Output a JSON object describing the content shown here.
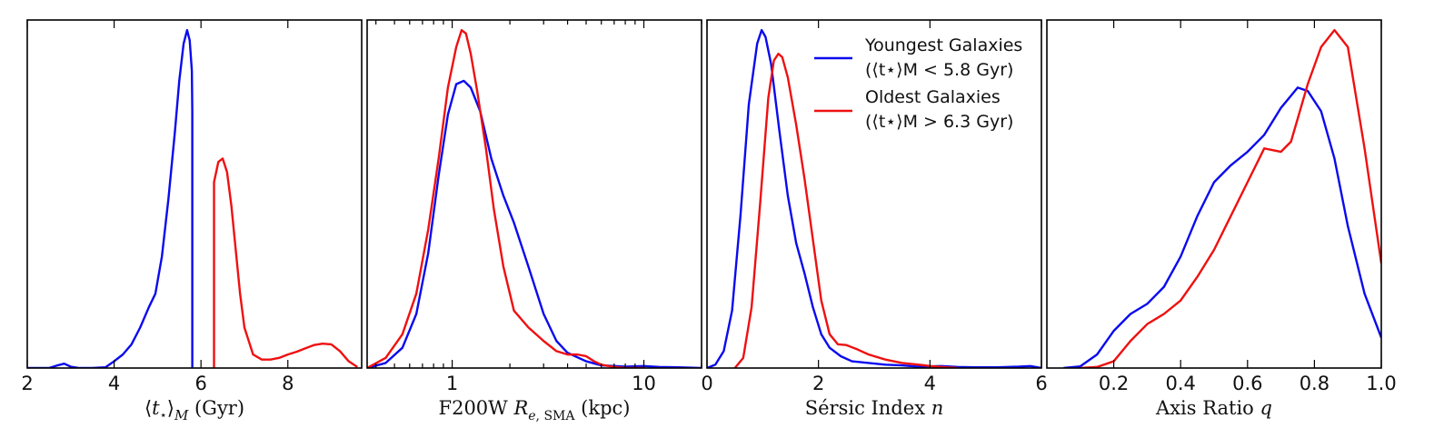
{
  "colors": {
    "youngest": "#0a0aef",
    "oldest": "#ef1010"
  },
  "legend": {
    "entries": [
      {
        "series": "youngest",
        "line1": "Youngest Galaxies",
        "line2": "(⟨t⋆⟩M < 5.8 Gyr)"
      },
      {
        "series": "oldest",
        "line1": "Oldest Galaxies",
        "line2": "(⟨t⋆⟩M > 6.3 Gyr)"
      }
    ],
    "placement": "top-right of panel 3"
  },
  "chart_data": [
    {
      "type": "line",
      "id": "age",
      "xlabel": "⟨t⋆⟩M (Gyr)",
      "xscale": "linear",
      "xlim": [
        2,
        9.7
      ],
      "xticks": [
        2,
        4,
        6,
        8
      ],
      "tick_labels": [
        "2",
        "4",
        "6",
        "8"
      ],
      "ylim": [
        0,
        1.03
      ],
      "series": [
        {
          "name": "youngest",
          "x": [
            2.0,
            2.5,
            2.7,
            2.85,
            3.0,
            3.2,
            3.5,
            3.8,
            4.0,
            4.2,
            4.4,
            4.6,
            4.8,
            4.95,
            5.1,
            5.25,
            5.4,
            5.5,
            5.6,
            5.68,
            5.74,
            5.79,
            5.8,
            5.8
          ],
          "y": [
            0.0,
            0.0,
            0.008,
            0.013,
            0.004,
            0.0,
            0.0,
            0.002,
            0.02,
            0.04,
            0.07,
            0.12,
            0.18,
            0.22,
            0.33,
            0.5,
            0.7,
            0.85,
            0.96,
            1.0,
            0.97,
            0.88,
            0.76,
            0.0
          ]
        },
        {
          "name": "oldest",
          "x": [
            6.3,
            6.3,
            6.4,
            6.5,
            6.6,
            6.7,
            6.8,
            6.9,
            7.0,
            7.2,
            7.4,
            7.6,
            7.8,
            8.0,
            8.2,
            8.4,
            8.6,
            8.8,
            9.0,
            9.2,
            9.4,
            9.6
          ],
          "y": [
            0.0,
            0.55,
            0.61,
            0.62,
            0.58,
            0.48,
            0.35,
            0.22,
            0.12,
            0.04,
            0.025,
            0.025,
            0.03,
            0.04,
            0.048,
            0.058,
            0.068,
            0.072,
            0.07,
            0.05,
            0.02,
            0.003
          ]
        }
      ]
    },
    {
      "type": "line",
      "id": "size",
      "xlabel": "F200W Re,SMA (kpc)",
      "xscale": "log",
      "xlim": [
        0.36,
        20
      ],
      "xticks": [
        1,
        10
      ],
      "tick_labels": [
        "1",
        "10"
      ],
      "minor_ticks": [
        0.4,
        0.5,
        0.6,
        0.7,
        0.8,
        0.9,
        2,
        3,
        4,
        5,
        6,
        7,
        8,
        9,
        20
      ],
      "ylim": [
        0,
        1.03
      ],
      "series": [
        {
          "name": "youngest",
          "x": [
            0.36,
            0.45,
            0.55,
            0.65,
            0.75,
            0.85,
            0.95,
            1.05,
            1.15,
            1.25,
            1.4,
            1.6,
            1.85,
            2.1,
            2.5,
            3.0,
            3.5,
            4.0,
            5.0,
            6.0,
            8.0,
            10.0,
            12.0,
            15.0,
            20.0
          ],
          "y": [
            0.0,
            0.015,
            0.06,
            0.16,
            0.34,
            0.57,
            0.75,
            0.84,
            0.85,
            0.83,
            0.76,
            0.62,
            0.51,
            0.43,
            0.3,
            0.16,
            0.08,
            0.045,
            0.02,
            0.008,
            0.004,
            0.006,
            0.003,
            0.002,
            0.0
          ]
        },
        {
          "name": "oldest",
          "x": [
            0.36,
            0.45,
            0.55,
            0.65,
            0.75,
            0.85,
            0.95,
            1.05,
            1.12,
            1.18,
            1.25,
            1.35,
            1.5,
            1.65,
            1.85,
            2.1,
            2.5,
            3.0,
            3.5,
            4.0,
            4.5,
            5.0,
            5.5,
            6.0,
            7.0,
            8.0,
            10.0
          ],
          "y": [
            0.0,
            0.03,
            0.1,
            0.22,
            0.41,
            0.62,
            0.83,
            0.95,
            1.0,
            0.99,
            0.93,
            0.82,
            0.65,
            0.47,
            0.3,
            0.17,
            0.12,
            0.08,
            0.05,
            0.04,
            0.04,
            0.035,
            0.02,
            0.01,
            0.003,
            0.0,
            0.0
          ]
        }
      ]
    },
    {
      "type": "line",
      "id": "sersic",
      "xlabel": "Sérsic Index n",
      "xscale": "linear",
      "xlim": [
        0,
        6
      ],
      "xticks": [
        0,
        2,
        4,
        6
      ],
      "tick_labels": [
        "0",
        "2",
        "4",
        "6"
      ],
      "ylim": [
        0,
        1.03
      ],
      "series": [
        {
          "name": "youngest",
          "x": [
            0.0,
            0.15,
            0.3,
            0.45,
            0.6,
            0.75,
            0.9,
            0.98,
            1.05,
            1.15,
            1.3,
            1.45,
            1.6,
            1.75,
            1.9,
            2.05,
            2.2,
            2.4,
            2.6,
            2.9,
            3.2,
            3.5,
            3.8,
            4.2,
            4.5,
            4.8,
            5.2,
            5.6,
            5.8,
            6.0
          ],
          "y": [
            0.0,
            0.01,
            0.05,
            0.17,
            0.45,
            0.78,
            0.96,
            1.0,
            0.98,
            0.9,
            0.7,
            0.51,
            0.37,
            0.28,
            0.18,
            0.1,
            0.06,
            0.035,
            0.02,
            0.015,
            0.01,
            0.008,
            0.004,
            0.006,
            0.003,
            0.002,
            0.002,
            0.004,
            0.006,
            0.0
          ]
        },
        {
          "name": "oldest",
          "x": [
            0.5,
            0.65,
            0.8,
            0.95,
            1.1,
            1.2,
            1.28,
            1.35,
            1.45,
            1.6,
            1.75,
            1.9,
            2.05,
            2.2,
            2.35,
            2.5,
            2.7,
            2.9,
            3.2,
            3.5,
            3.8,
            4.0,
            4.2,
            4.5
          ],
          "y": [
            0.0,
            0.03,
            0.18,
            0.48,
            0.8,
            0.91,
            0.93,
            0.92,
            0.86,
            0.72,
            0.56,
            0.38,
            0.2,
            0.1,
            0.07,
            0.068,
            0.055,
            0.04,
            0.025,
            0.015,
            0.01,
            0.006,
            0.003,
            0.0
          ]
        }
      ]
    },
    {
      "type": "line",
      "id": "axis_ratio",
      "xlabel": "Axis Ratio q",
      "xscale": "linear",
      "xlim": [
        0,
        1.0
      ],
      "xticks": [
        0.2,
        0.4,
        0.6,
        0.8,
        1.0
      ],
      "tick_labels": [
        "0.2",
        "0.4",
        "0.6",
        "0.8",
        "1.0"
      ],
      "ylim": [
        0,
        1.03
      ],
      "series": [
        {
          "name": "youngest",
          "x": [
            0.05,
            0.1,
            0.15,
            0.2,
            0.25,
            0.3,
            0.35,
            0.4,
            0.45,
            0.5,
            0.55,
            0.6,
            0.65,
            0.7,
            0.75,
            0.78,
            0.82,
            0.86,
            0.9,
            0.95,
            1.0
          ],
          "y": [
            0.0,
            0.005,
            0.04,
            0.11,
            0.16,
            0.19,
            0.24,
            0.33,
            0.45,
            0.55,
            0.6,
            0.64,
            0.69,
            0.77,
            0.83,
            0.82,
            0.76,
            0.62,
            0.42,
            0.22,
            0.09
          ]
        },
        {
          "name": "oldest",
          "x": [
            0.1,
            0.15,
            0.2,
            0.25,
            0.3,
            0.35,
            0.4,
            0.45,
            0.5,
            0.55,
            0.6,
            0.65,
            0.7,
            0.73,
            0.78,
            0.82,
            0.86,
            0.9,
            0.95,
            1.0
          ],
          "y": [
            0.0,
            0.003,
            0.02,
            0.08,
            0.13,
            0.16,
            0.2,
            0.27,
            0.35,
            0.45,
            0.55,
            0.65,
            0.64,
            0.67,
            0.84,
            0.95,
            1.0,
            0.95,
            0.65,
            0.31
          ]
        }
      ]
    }
  ]
}
